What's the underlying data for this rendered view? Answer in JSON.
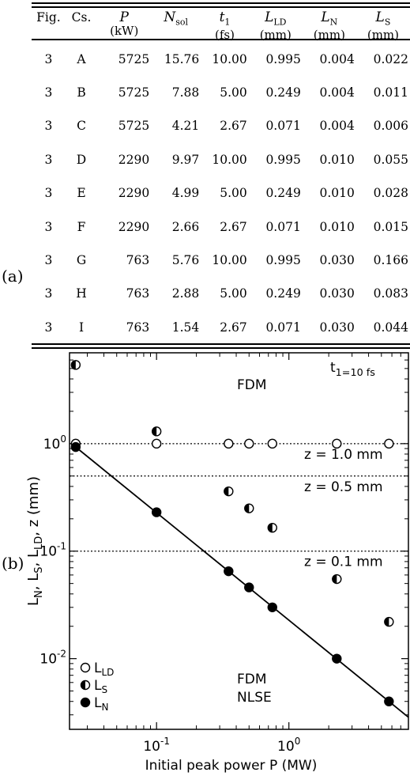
{
  "table": {
    "panel_label": "(a)",
    "headers": [
      {
        "main": "Fig.",
        "unit": ""
      },
      {
        "main": "Cs.",
        "unit": ""
      },
      {
        "main": "P",
        "unit": "(kW)"
      },
      {
        "main": "Nsol",
        "unit": ""
      },
      {
        "main": "t1",
        "unit": "(fs)"
      },
      {
        "main": "LLD",
        "unit": "(mm)"
      },
      {
        "main": "LN",
        "unit": "(mm)"
      },
      {
        "main": "LS",
        "unit": "(mm)"
      }
    ],
    "rows": [
      [
        "3",
        "A",
        "5725",
        "15.76",
        "10.00",
        "0.995",
        "0.004",
        "0.022"
      ],
      [
        "3",
        "B",
        "5725",
        "7.88",
        "5.00",
        "0.249",
        "0.004",
        "0.011"
      ],
      [
        "3",
        "C",
        "5725",
        "4.21",
        "2.67",
        "0.071",
        "0.004",
        "0.006"
      ],
      [
        "3",
        "D",
        "2290",
        "9.97",
        "10.00",
        "0.995",
        "0.010",
        "0.055"
      ],
      [
        "3",
        "E",
        "2290",
        "4.99",
        "5.00",
        "0.249",
        "0.010",
        "0.028"
      ],
      [
        "3",
        "F",
        "2290",
        "2.66",
        "2.67",
        "0.071",
        "0.010",
        "0.015"
      ],
      [
        "3",
        "G",
        "763",
        "5.76",
        "10.00",
        "0.995",
        "0.030",
        "0.166"
      ],
      [
        "3",
        "H",
        "763",
        "2.88",
        "5.00",
        "0.249",
        "0.030",
        "0.083"
      ],
      [
        "3",
        "I",
        "763",
        "1.54",
        "2.67",
        "0.071",
        "0.030",
        "0.044"
      ]
    ]
  },
  "chart": {
    "panel_label": "(b)"
  },
  "chart_data": {
    "type": "scatter",
    "xlabel": "Initial peak power P (MW)",
    "ylabel": "LN, LS, LLD, z (mm)",
    "x_scale": "log",
    "y_scale": "log",
    "xlim": [
      0.022,
      8.0
    ],
    "ylim": [
      0.0022,
      7.0
    ],
    "x_ticks": [
      {
        "value": 0.1,
        "label": "10^-1"
      },
      {
        "value": 1,
        "label": "10^0"
      }
    ],
    "y_ticks": [
      {
        "value": 0.01,
        "label": "10^-2"
      },
      {
        "value": 0.1,
        "label": "10^-1"
      },
      {
        "value": 1,
        "label": "10^0"
      }
    ],
    "annotations": {
      "pulse": "t1=10 fs",
      "top_method": "FDM",
      "bottom_method": "FDM",
      "bottom_model": "NLSE"
    },
    "series": [
      {
        "name": "LLD",
        "marker": "open-circle",
        "x": [
          0.0245,
          0.1,
          0.35,
          0.5,
          0.75,
          2.3,
          5.7
        ],
        "y": [
          1.0,
          1.0,
          1.0,
          1.0,
          1.0,
          1.0,
          1.0
        ]
      },
      {
        "name": "LS",
        "marker": "half-circle",
        "x": [
          0.0245,
          0.1,
          0.35,
          0.5,
          0.75,
          2.3,
          5.7
        ],
        "y": [
          5.4,
          1.3,
          0.36,
          0.25,
          0.165,
          0.055,
          0.022
        ]
      },
      {
        "name": "LN",
        "marker": "filled-circle",
        "x": [
          0.0245,
          0.1,
          0.35,
          0.5,
          0.75,
          2.3,
          5.7
        ],
        "y": [
          0.93,
          0.23,
          0.065,
          0.046,
          0.03,
          0.01,
          0.004
        ]
      }
    ],
    "fit_line": {
      "x": [
        0.0245,
        8.0
      ],
      "y": [
        0.93,
        0.00285
      ]
    },
    "reference_lines": [
      {
        "label": "z = 1.0 mm",
        "y": 1.0
      },
      {
        "label": "z = 0.5 mm",
        "y": 0.5
      },
      {
        "label": "z = 0.1 mm",
        "y": 0.1
      }
    ]
  }
}
